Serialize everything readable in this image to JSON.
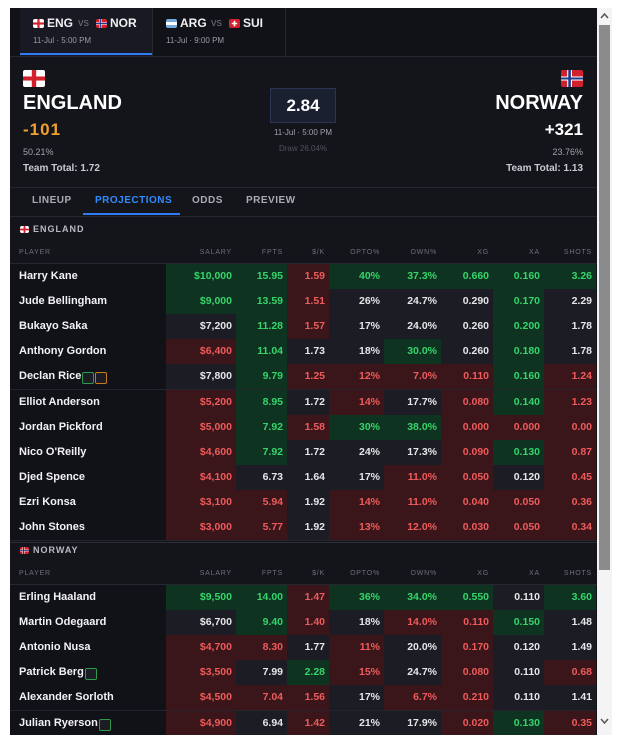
{
  "tabs": [
    {
      "home": "ENG",
      "sep": "vs",
      "away": "NOR",
      "time": "11-Jul · 5:00 PM",
      "flags": [
        "england",
        "norway"
      ]
    },
    {
      "home": "ARG",
      "sep": "vs",
      "away": "SUI",
      "time": "11-Jul · 9:00 PM",
      "flags": [
        "argentina",
        "switzerland"
      ]
    }
  ],
  "match": {
    "home": {
      "name": "ENGLAND",
      "odds": "-101",
      "prob": "50.21%",
      "team_total": "Team Total: 1.72"
    },
    "away": {
      "name": "NORWAY",
      "odds": "+321",
      "prob": "23.76%",
      "team_total": "Team Total: 1.13"
    },
    "total": "2.84",
    "time": "11-Jul · 5:00 PM",
    "draw": "Draw 26.04%"
  },
  "nav": [
    "LINEUP",
    "PROJECTIONS",
    "ODDS",
    "PREVIEW"
  ],
  "columns": [
    "PLAYER",
    "SALARY",
    "FPTS",
    "$/K",
    "OPTO%",
    "OWN%",
    "XG",
    "XA",
    "SHOTS"
  ],
  "sections": [
    {
      "team": "ENGLAND",
      "flag": "england",
      "rows": [
        {
          "player": "Harry Kane",
          "stats": [
            "$10,000",
            "15.95",
            "1.59",
            "40%",
            "37.3%",
            "0.660",
            "0.160",
            "3.26"
          ],
          "tones": "ggrggggg"
        },
        {
          "player": "Jude Bellingham",
          "stats": [
            "$9,000",
            "13.59",
            "1.51",
            "26%",
            "24.7%",
            "0.290",
            "0.170",
            "2.29"
          ],
          "tones": "ggrnnngn"
        },
        {
          "player": "Bukayo Saka",
          "stats": [
            "$7,200",
            "11.28",
            "1.57",
            "17%",
            "24.0%",
            "0.260",
            "0.200",
            "1.78"
          ],
          "tones": "ngrnnngn"
        },
        {
          "player": "Anthony Gordon",
          "stats": [
            "$6,400",
            "11.04",
            "1.73",
            "18%",
            "30.0%",
            "0.260",
            "0.180",
            "1.78"
          ],
          "tones": "rgnngngn"
        },
        {
          "player": "Declan Rice",
          "stats": [
            "$7,800",
            "9.79",
            "1.25",
            "12%",
            "7.0%",
            "0.110",
            "0.160",
            "1.24"
          ],
          "tones": "ngrrrrgr",
          "badges": [
            "green",
            "orange"
          ]
        },
        {
          "player": "Elliot Anderson",
          "stats": [
            "$5,200",
            "8.95",
            "1.72",
            "14%",
            "17.7%",
            "0.080",
            "0.140",
            "1.23"
          ],
          "tones": "rgnrnrgr"
        },
        {
          "player": "Jordan Pickford",
          "stats": [
            "$5,000",
            "7.92",
            "1.58",
            "30%",
            "38.0%",
            "0.000",
            "0.000",
            "0.00"
          ],
          "tones": "rgrggrrr"
        },
        {
          "player": "Nico O'Reilly",
          "stats": [
            "$4,600",
            "7.92",
            "1.72",
            "24%",
            "17.3%",
            "0.090",
            "0.130",
            "0.87"
          ],
          "tones": "rgnnnrgr"
        },
        {
          "player": "Djed Spence",
          "stats": [
            "$4,100",
            "6.73",
            "1.64",
            "17%",
            "11.0%",
            "0.050",
            "0.120",
            "0.45"
          ],
          "tones": "rnnnrrnr"
        },
        {
          "player": "Ezri Konsa",
          "stats": [
            "$3,100",
            "5.94",
            "1.92",
            "14%",
            "11.0%",
            "0.040",
            "0.050",
            "0.36"
          ],
          "tones": "rrnrrrrr"
        },
        {
          "player": "John Stones",
          "stats": [
            "$3,000",
            "5.77",
            "1.92",
            "13%",
            "12.0%",
            "0.030",
            "0.050",
            "0.34"
          ],
          "tones": "rrnrrrrr"
        }
      ]
    },
    {
      "team": "NORWAY",
      "flag": "norway",
      "rows": [
        {
          "player": "Erling Haaland",
          "stats": [
            "$9,500",
            "14.00",
            "1.47",
            "36%",
            "34.0%",
            "0.550",
            "0.110",
            "3.60"
          ],
          "tones": "ggrgggng"
        },
        {
          "player": "Martin Odegaard",
          "stats": [
            "$6,700",
            "9.40",
            "1.40",
            "18%",
            "14.0%",
            "0.110",
            "0.150",
            "1.48"
          ],
          "tones": "ngrnrrgn"
        },
        {
          "player": "Antonio Nusa",
          "stats": [
            "$4,700",
            "8.30",
            "1.77",
            "11%",
            "20.0%",
            "0.170",
            "0.120",
            "1.49"
          ],
          "tones": "rrnrnrnn"
        },
        {
          "player": "Patrick Berg",
          "stats": [
            "$3,500",
            "7.99",
            "2.28",
            "15%",
            "24.7%",
            "0.080",
            "0.110",
            "0.68"
          ],
          "tones": "rngrnrnr",
          "badges": [
            "green"
          ]
        },
        {
          "player": "Alexander Sorloth",
          "stats": [
            "$4,500",
            "7.04",
            "1.56",
            "17%",
            "6.7%",
            "0.210",
            "0.110",
            "1.41"
          ],
          "tones": "rrrnrrnn"
        },
        {
          "player": "Julian Ryerson",
          "stats": [
            "$4,900",
            "6.94",
            "1.42",
            "21%",
            "17.9%",
            "0.020",
            "0.130",
            "0.35"
          ],
          "tones": "rnrnnrgr",
          "badges": [
            "green"
          ]
        }
      ]
    }
  ]
}
